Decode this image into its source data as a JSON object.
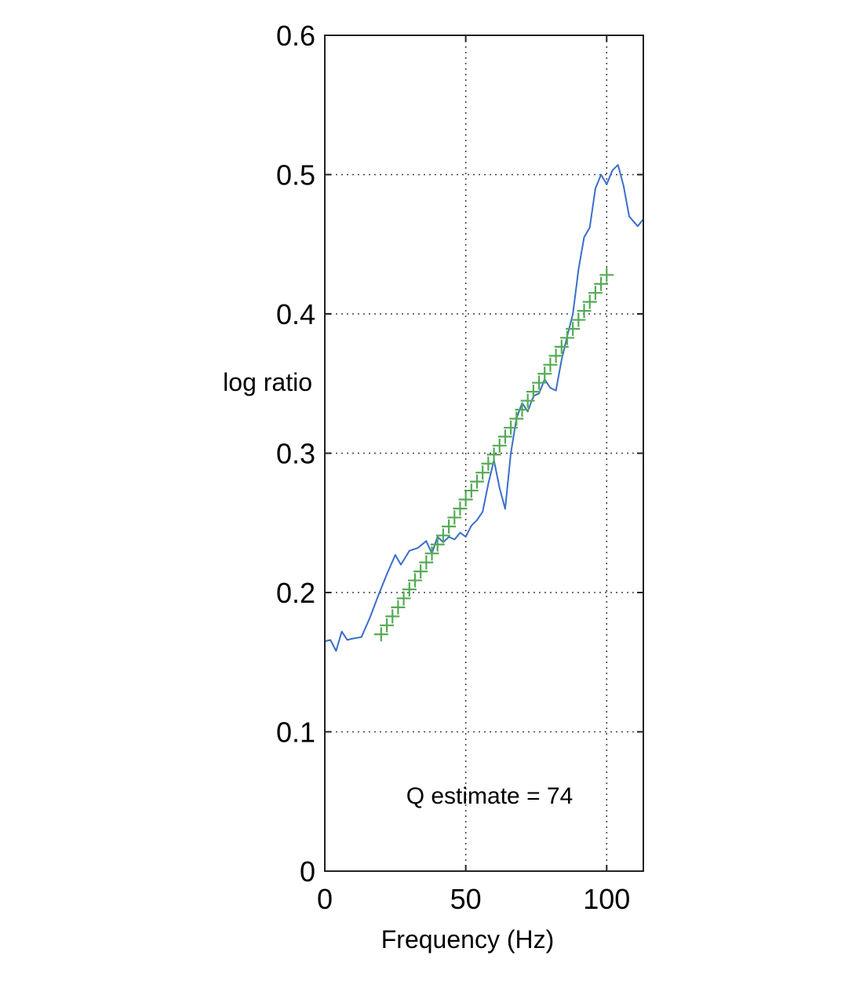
{
  "chart_data": {
    "type": "line",
    "title": "",
    "xlabel": "Frequency (Hz)",
    "ylabel": "log ratio",
    "xlim": [
      0,
      113
    ],
    "ylim": [
      0,
      0.6
    ],
    "xticks": [
      0,
      50,
      100
    ],
    "yticks": [
      0,
      0.1,
      0.2,
      0.3,
      0.4,
      0.5,
      0.6
    ],
    "xtick_labels": [
      "0",
      "50",
      "100"
    ],
    "ytick_labels": [
      "0",
      "0.1",
      "0.2",
      "0.3",
      "0.4",
      "0.5",
      "0.6"
    ],
    "grid": true,
    "annotation": "Q estimate = 74",
    "series": [
      {
        "style": "line",
        "color": "#3a6fc8",
        "points": [
          [
            0,
            0.165
          ],
          [
            2,
            0.166
          ],
          [
            4,
            0.158
          ],
          [
            6,
            0.172
          ],
          [
            8,
            0.166
          ],
          [
            10,
            0.167
          ],
          [
            13,
            0.168
          ],
          [
            16,
            0.182
          ],
          [
            19,
            0.198
          ],
          [
            22,
            0.213
          ],
          [
            25,
            0.227
          ],
          [
            27,
            0.22
          ],
          [
            30,
            0.23
          ],
          [
            33,
            0.232
          ],
          [
            36,
            0.237
          ],
          [
            38,
            0.228
          ],
          [
            40,
            0.24
          ],
          [
            42,
            0.236
          ],
          [
            44,
            0.24
          ],
          [
            46,
            0.238
          ],
          [
            48,
            0.243
          ],
          [
            50,
            0.24
          ],
          [
            52,
            0.248
          ],
          [
            54,
            0.252
          ],
          [
            56,
            0.258
          ],
          [
            58,
            0.278
          ],
          [
            60,
            0.295
          ],
          [
            62,
            0.275
          ],
          [
            64,
            0.26
          ],
          [
            66,
            0.3
          ],
          [
            68,
            0.325
          ],
          [
            70,
            0.336
          ],
          [
            72,
            0.33
          ],
          [
            74,
            0.341
          ],
          [
            76,
            0.343
          ],
          [
            78,
            0.353
          ],
          [
            80,
            0.347
          ],
          [
            82,
            0.345
          ],
          [
            84,
            0.367
          ],
          [
            86,
            0.384
          ],
          [
            88,
            0.4
          ],
          [
            90,
            0.432
          ],
          [
            92,
            0.455
          ],
          [
            94,
            0.462
          ],
          [
            96,
            0.49
          ],
          [
            98,
            0.5
          ],
          [
            100,
            0.493
          ],
          [
            102,
            0.503
          ],
          [
            104,
            0.507
          ],
          [
            106,
            0.492
          ],
          [
            108,
            0.47
          ],
          [
            111,
            0.463
          ],
          [
            113,
            0.468
          ]
        ]
      },
      {
        "style": "markers",
        "marker": "+",
        "color": "#55aa55",
        "x_start": 20,
        "x_end": 100,
        "x_step": 2,
        "y_start": 0.17,
        "y_end": 0.428
      }
    ]
  }
}
